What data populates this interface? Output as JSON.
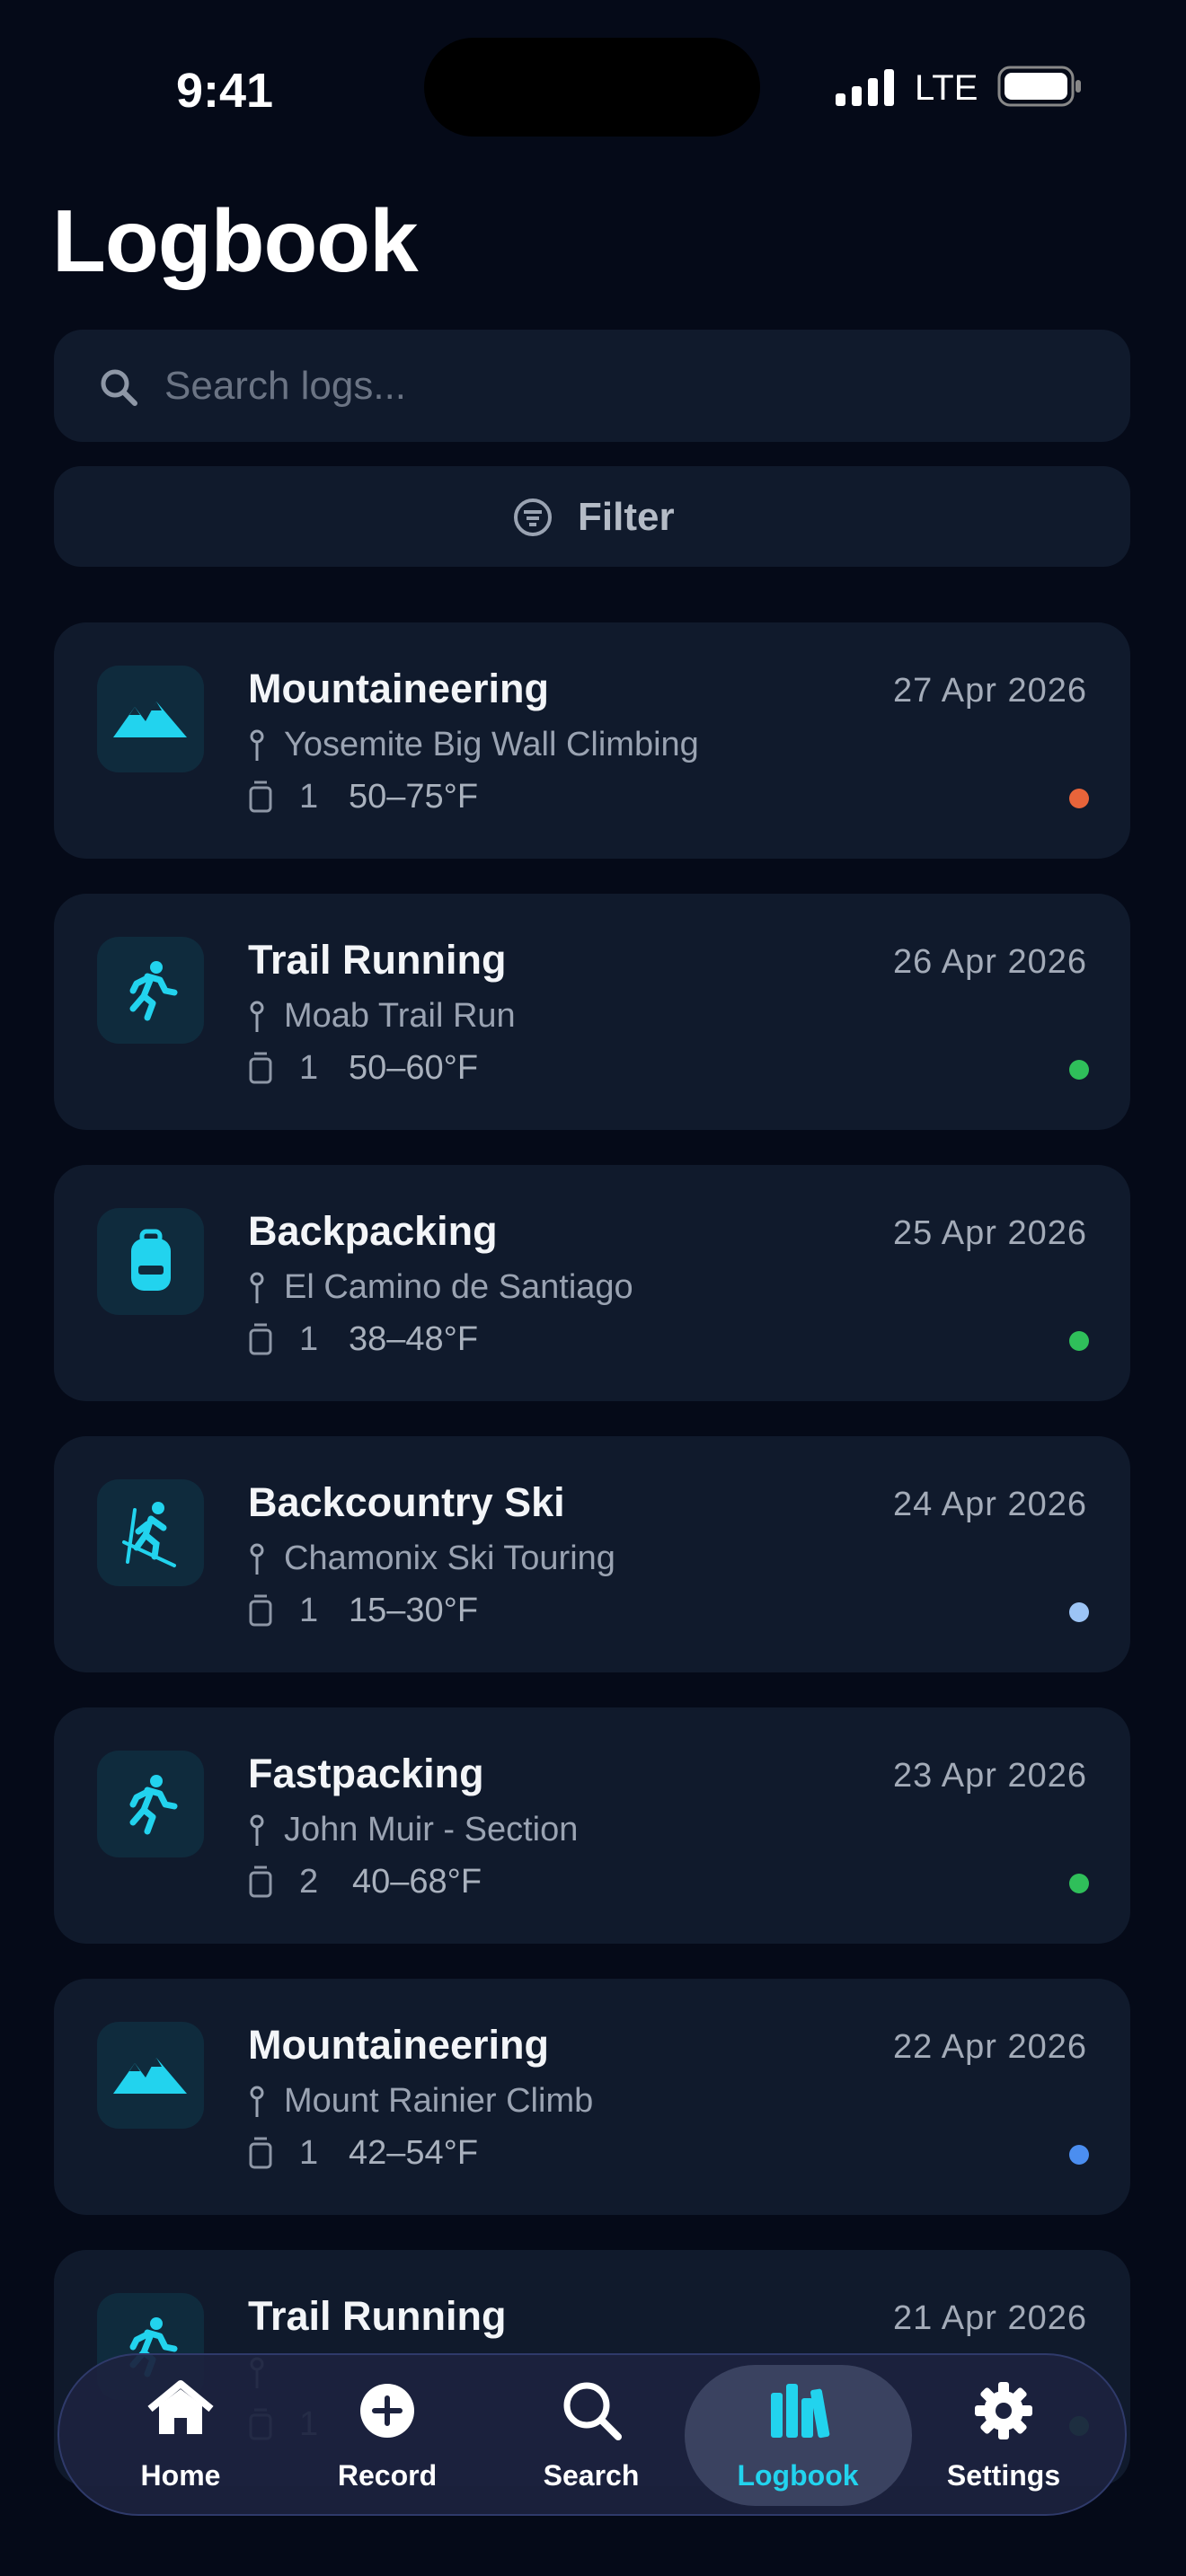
{
  "status_bar": {
    "time": "9:41",
    "network": "LTE"
  },
  "header": {
    "title": "Logbook"
  },
  "search": {
    "placeholder": "Search logs..."
  },
  "filter": {
    "label": "Filter"
  },
  "entries": [
    {
      "activity": "Mountaineering",
      "date": "27 Apr 2026",
      "location": "Yosemite Big Wall Climbing",
      "count": 1,
      "temperature": "50–75°F",
      "status_color": "#e8643a"
    },
    {
      "activity": "Trail Running",
      "date": "26 Apr 2026",
      "location": "Moab Trail Run",
      "count": 1,
      "temperature": "50–60°F",
      "status_color": "#2fbf5a"
    },
    {
      "activity": "Backpacking",
      "date": "25 Apr 2026",
      "location": "El Camino de Santiago",
      "count": 1,
      "temperature": "38–48°F",
      "status_color": "#2fbf5a"
    },
    {
      "activity": "Backcountry Ski",
      "date": "24 Apr 2026",
      "location": "Chamonix Ski Touring",
      "count": 1,
      "temperature": "15–30°F",
      "status_color": "#9cc4f5"
    },
    {
      "activity": "Fastpacking",
      "date": "23 Apr 2026",
      "location": "John Muir - Section",
      "count": 2,
      "temperature": "40–68°F",
      "status_color": "#2fbf5a"
    },
    {
      "activity": "Mountaineering",
      "date": "22 Apr 2026",
      "location": "Mount Rainier Climb",
      "count": 1,
      "temperature": "42–54°F",
      "status_color": "#4b8ef0"
    },
    {
      "activity": "Trail Running",
      "date": "21 Apr 2026",
      "location": "",
      "count": 1,
      "temperature": "",
      "status_color": "#2fbf5a"
    }
  ],
  "tabs": [
    {
      "label": "Home",
      "active": false
    },
    {
      "label": "Record",
      "active": false
    },
    {
      "label": "Search",
      "active": false
    },
    {
      "label": "Logbook",
      "active": true
    },
    {
      "label": "Settings",
      "active": false
    }
  ]
}
